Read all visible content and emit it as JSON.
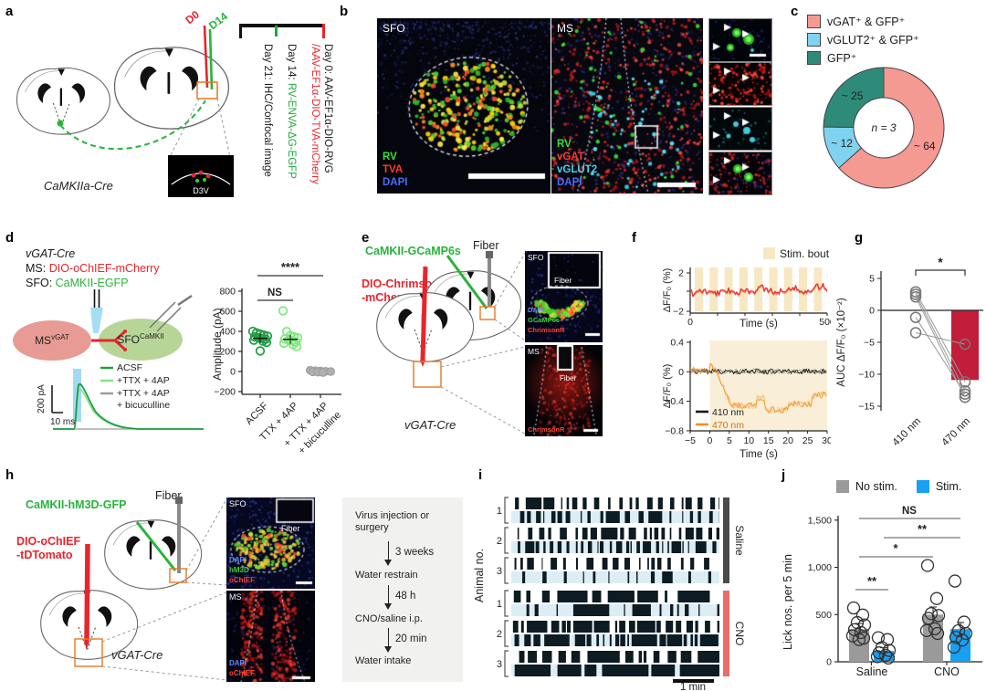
{
  "panel_a": {
    "label": "a",
    "d0": "D0",
    "d14": "D14",
    "timeline": {
      "day0_black": "Day 0: AAV-EF1α-DIO-RVG",
      "day0_red": "/AAV-EF1α-DIO-TVA-mCherry",
      "day14_black": "Day 14: ",
      "day14_green": "RV-ENVA-ΔG-EGFP",
      "day21": "Day 21: IHC/Confocal image"
    },
    "inset_label": "D3V",
    "mouse_line": "CaMKIIa-Cre"
  },
  "panel_b": {
    "label": "b",
    "sfo": {
      "title": "SFO",
      "legend": [
        {
          "t": "RV",
          "c": "#35e135"
        },
        {
          "t": "TVA",
          "c": "#ff3b30"
        },
        {
          "t": "DAPI",
          "c": "#4a6cff"
        }
      ]
    },
    "ms": {
      "title": "MS",
      "legend": [
        {
          "t": "RV",
          "c": "#35e135"
        },
        {
          "t": "vGAT",
          "c": "#ff3b30"
        },
        {
          "t": "vGLUT2",
          "c": "#3fd6e8"
        },
        {
          "t": "DAPI",
          "c": "#4a6cff"
        }
      ]
    }
  },
  "panel_c": {
    "label": "c",
    "legend": [
      {
        "label": "vGAT⁺ & GFP⁺",
        "color": "#f59a92"
      },
      {
        "label": "vGLUT2⁺ & GFP⁺",
        "color": "#7fd2f0"
      },
      {
        "label": "GFP⁺",
        "color": "#2e8b79"
      }
    ],
    "center_label": "n = 3"
  },
  "panel_d": {
    "label": "d",
    "title1": "vGAT-Cre",
    "ms_prefix": "MS: ",
    "ms_virus": "DIO-oChIEF-mCherry",
    "sfo_prefix": "SFO: ",
    "sfo_virus": "CaMKII-EGFP",
    "ellipse_ms": {
      "base": "MS",
      "sup": "vGAT"
    },
    "ellipse_sfo": {
      "base": "SFO",
      "sup": "CaMKII"
    },
    "trace_legend": [
      {
        "t": "ACSF",
        "c": "#1f9d44"
      },
      {
        "t": "+TTX + 4AP",
        "c": "#7ee87e"
      },
      {
        "t": "+TTX + 4AP",
        "c": "#9a9a9a"
      },
      {
        "t": "+ bicuculline",
        "c": null
      }
    ],
    "scale_v": "200 pA",
    "scale_h": "10 ms",
    "sig_ns": "NS",
    "sig_main": "****",
    "cat_rot": [
      "ACSF",
      "TTX + 4AP",
      "+ TTX + 4AP",
      "+ bicuculline"
    ]
  },
  "panel_e": {
    "label": "e",
    "green_label": "CaMKII-GCaMP6s",
    "fiber": "Fiber",
    "red_label1": "DIO-ChrimsonR",
    "red_label2": "-mCherry",
    "mouse_line": "vGAT-Cre",
    "sfo": {
      "title": "SFO",
      "fiber": "Fiber",
      "legend": [
        {
          "t": "DAPI",
          "c": "#5b8cff"
        },
        {
          "t": "GCaMP6s",
          "c": "#3ad12f"
        },
        {
          "t": "ChrimsonR",
          "c": "#ff4136"
        }
      ]
    },
    "ms": {
      "title": "MS",
      "fiber": "Fiber",
      "legend": [
        {
          "t": "ChrimsonR",
          "c": "#ff4136"
        }
      ]
    }
  },
  "panel_f": {
    "label": "f",
    "stim_legend": "Stim. bout"
  },
  "panel_g": {
    "label": "g"
  },
  "panel_h": {
    "label": "h",
    "green_label": "CaMKII-hM3D-GFP",
    "fiber": "Fiber",
    "red_label1": "DIO-oChIEF",
    "red_label2": "-tDTomato",
    "mouse_line": "vGAT-Cre",
    "sfo": {
      "title": "SFO",
      "fiber": "Fiber",
      "legend": [
        {
          "t": "DAPI",
          "c": "#5b8cff"
        },
        {
          "t": "hM3D",
          "c": "#3ad12f"
        },
        {
          "t": "oChIEF",
          "c": "#ff4136"
        }
      ]
    },
    "ms": {
      "title": "MS",
      "legend": [
        {
          "t": "DAPI",
          "c": "#5b8cff"
        },
        {
          "t": "oChIEF",
          "c": "#ff4136"
        }
      ]
    },
    "flow": {
      "steps": [
        "Virus injection or surgery",
        "Water restrain",
        "CNO/saline i.p.",
        "Water intake"
      ],
      "arrows": [
        "3 weeks",
        "48 h",
        "20 min"
      ]
    }
  },
  "panel_i": {
    "label": "i",
    "ylabel": "Animal no.",
    "animals": [
      "1",
      "2",
      "3"
    ],
    "groups": [
      {
        "name": "Saline",
        "color": "#4a4a4a"
      },
      {
        "name": "CNO",
        "color": "#ef6a6a"
      }
    ],
    "scalebar": "1 min"
  },
  "panel_j": {
    "label": "j",
    "legend": [
      {
        "t": "No stim.",
        "c": "#9a9a9a"
      },
      {
        "t": "Stim.",
        "c": "#19a0f0"
      }
    ],
    "categories": [
      "Saline",
      "CNO"
    ]
  },
  "chart_data": [
    {
      "id": "c-donut",
      "type": "pie",
      "labels": [
        "vGAT⁺ & GFP⁺",
        "vGLUT2⁺ & GFP⁺",
        "GFP⁺"
      ],
      "values": [
        64,
        12,
        25
      ],
      "value_labels": [
        "~ 64",
        "~ 12",
        "~ 25"
      ],
      "center_label": "n = 3",
      "colors": [
        "#f59a92",
        "#7fd2f0",
        "#2e8b79"
      ]
    },
    {
      "id": "d-scatter",
      "type": "scatter",
      "ylabel": "Amplitude (pA)",
      "ylim": [
        -200,
        800
      ],
      "yticks": [
        800,
        600,
        400,
        200,
        0,
        -200
      ],
      "categories": [
        "ACSF",
        "TTX + 4AP",
        "+ TTX + 4AP + bicuculline"
      ],
      "series": [
        {
          "name": "ACSF",
          "color": "#1f9d44",
          "values": [
            400,
            385,
            372,
            362,
            352,
            345,
            338,
            330,
            322,
            312,
            302,
            290,
            205
          ]
        },
        {
          "name": "TTX + 4AP",
          "color": "#7ee87e",
          "values": [
            605,
            398,
            358,
            345,
            335,
            325,
            315,
            305,
            295,
            282,
            268,
            248
          ]
        },
        {
          "name": "+ TTX + 4AP + bicuculline",
          "color": "#b0b0b0",
          "values": [
            12,
            8,
            5,
            2,
            0,
            -3,
            -6,
            -10
          ]
        }
      ],
      "annotations": [
        {
          "label": "NS",
          "between": [
            0,
            1
          ]
        },
        {
          "label": "****",
          "between": [
            0,
            2
          ]
        }
      ]
    },
    {
      "id": "f-top",
      "type": "line",
      "ylabel": "ΔF/F₀ (%)",
      "ylim": [
        -2,
        2
      ],
      "yticks": [
        2,
        -2
      ],
      "xlabel": "Time (s)",
      "xlim": [
        0,
        500
      ],
      "xticks": [
        0,
        500
      ],
      "stim_bouts": 9,
      "series": [
        {
          "name": "SFO GCaMP signal",
          "color": "#e8332a"
        }
      ]
    },
    {
      "id": "f-bottom",
      "type": "line",
      "ylabel": "ΔF/F₀ (%)",
      "ylim": [
        -0.8,
        0.4
      ],
      "yticks": [
        0.4,
        0,
        -0.4,
        -0.8
      ],
      "xlabel": "Time (s)",
      "xlim": [
        -5,
        30
      ],
      "xticks": [
        -5,
        0,
        5,
        10,
        15,
        20,
        25,
        30
      ],
      "series": [
        {
          "name": "410 nm",
          "color": "#1a1a1a",
          "summary": "stays near 0"
        },
        {
          "name": "470 nm",
          "color": "#f29222",
          "summary": "drops to about -0.45 after stim onset"
        }
      ]
    },
    {
      "id": "g-auc",
      "type": "bar",
      "ylabel": "AUC ΔF/F₀ (×10⁻²)",
      "ylim": [
        -15,
        5
      ],
      "yticks": [
        5,
        0,
        -5,
        -10,
        -15
      ],
      "categories": [
        "410 nm",
        "470 nm"
      ],
      "bar_values": [
        null,
        -10.9
      ],
      "bar_color": "#c21d3a",
      "paired_points": [
        [
          2.9,
          -11.2
        ],
        [
          2.5,
          -12.6
        ],
        [
          2.1,
          -13.6
        ],
        [
          -1.1,
          -13.1
        ],
        [
          -3.5,
          -5.3
        ]
      ],
      "sig": "*"
    },
    {
      "id": "j-licks",
      "type": "bar",
      "ylabel": "Lick nos. per 5 min",
      "ylim": [
        0,
        1500
      ],
      "ytick_labels": [
        "1,500",
        "1,000",
        "500",
        "0"
      ],
      "yticks": [
        1500,
        1000,
        500,
        0
      ],
      "categories": [
        "Saline",
        "CNO"
      ],
      "series": [
        {
          "name": "No stim.",
          "color": "#9a9a9a",
          "values": [
            346,
            500
          ],
          "errors": [
            60,
            80
          ],
          "points": [
            [
              570,
              495,
              415,
              390,
              340,
              310,
              275,
              250,
              235
            ],
            [
              1020,
              670,
              510,
              490,
              460,
              350,
              330,
              300
            ]
          ]
        },
        {
          "name": "Stim.",
          "color": "#19a0f0",
          "values": [
            115,
            346
          ],
          "errors": [
            35,
            70
          ],
          "points": [
            [
              255,
              235,
              150,
              120,
              95,
              70,
              55,
              40
            ],
            [
              855,
              420,
              330,
              300,
              260,
              230,
              155
            ]
          ]
        }
      ],
      "sig": [
        {
          "label": "**",
          "note": "Saline No stim. vs Saline Stim."
        },
        {
          "label": "*",
          "note": "Saline No stim. vs CNO No stim."
        },
        {
          "label": "**",
          "note": "Saline Stim. vs CNO Stim."
        },
        {
          "label": "NS",
          "note": "top comparison"
        }
      ]
    }
  ]
}
